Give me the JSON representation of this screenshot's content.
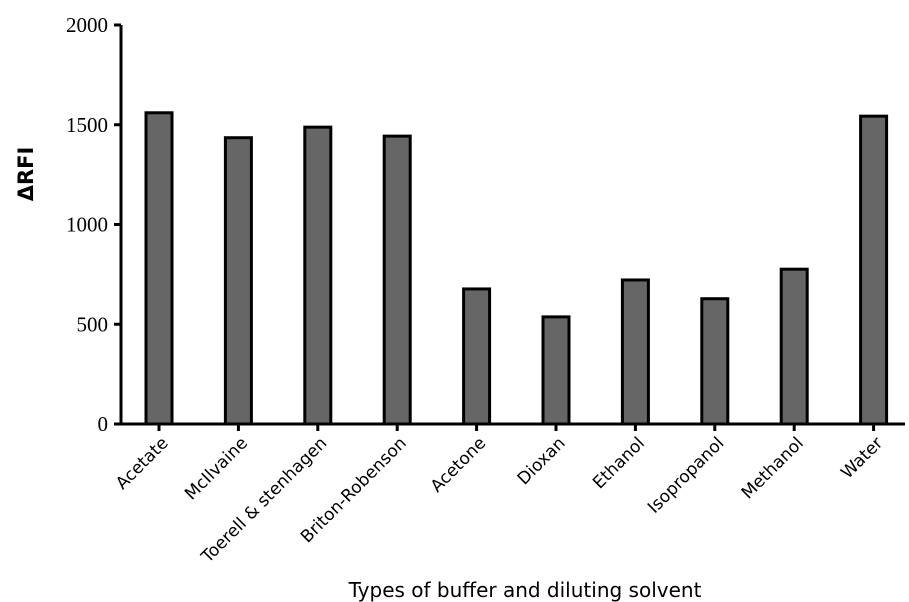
{
  "chart_data": {
    "type": "bar",
    "categories": [
      "Acetate",
      "McIlvaine",
      "Toerell & stenhagen",
      "Briton-Robenson",
      "Acetone",
      "Dioxan",
      "Ethanol",
      "Isopropanol",
      "Methanol",
      "Water"
    ],
    "values": [
      1560,
      1435,
      1488,
      1443,
      677,
      537,
      722,
      628,
      776,
      1543
    ],
    "ylabel": "ΔRFI",
    "xlabel": "Types of buffer and diluting solvent",
    "ylim": [
      0,
      2000
    ],
    "yticks": [
      0,
      500,
      1000,
      1500,
      2000
    ],
    "grid": false,
    "legend": "none",
    "colors": {
      "bar_fill": "#666666",
      "bar_stroke": "#000000",
      "axis": "#000000"
    }
  }
}
